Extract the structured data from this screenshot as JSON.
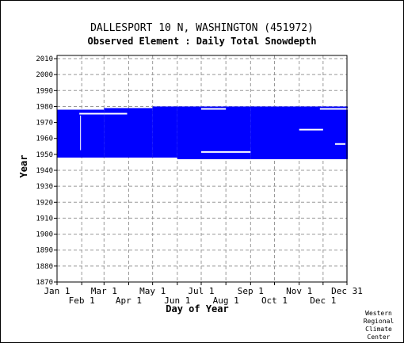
{
  "chart_data": {
    "type": "heatmap",
    "title": "DALLESPORT 10 N, WASHINGTON   (451972)",
    "subtitle": "Observed Element : Daily Total Snowdepth",
    "xlabel": "Day of Year",
    "ylabel": "Year",
    "ylim": [
      1870,
      2012
    ],
    "xlim": [
      1,
      365
    ],
    "grid": true,
    "y_ticks": [
      2010,
      2000,
      1990,
      1980,
      1970,
      1960,
      1950,
      1940,
      1930,
      1920,
      1910,
      1900,
      1890,
      1880,
      1870
    ],
    "x_ticks_top_row": [
      {
        "label": "Jan 1",
        "day": 1
      },
      {
        "label": "Mar 1",
        "day": 60
      },
      {
        "label": "May 1",
        "day": 121
      },
      {
        "label": "Jul 1",
        "day": 182
      },
      {
        "label": "Sep 1",
        "day": 244
      },
      {
        "label": "Nov 1",
        "day": 305
      },
      {
        "label": "Dec 31",
        "day": 365
      }
    ],
    "x_ticks_bottom_row": [
      {
        "label": "Feb 1",
        "day": 32
      },
      {
        "label": "Apr 1",
        "day": 91
      },
      {
        "label": "Jun 1",
        "day": 152
      },
      {
        "label": "Aug 1",
        "day": 213
      },
      {
        "label": "Oct 1",
        "day": 274
      },
      {
        "label": "Dec 1",
        "day": 335
      }
    ],
    "observed_color": "#0000ff",
    "observed_blocks": [
      {
        "day_start": 1,
        "day_end": 59,
        "year_start": 1948,
        "year_end": 1977
      },
      {
        "day_start": 60,
        "day_end": 120,
        "year_start": 1948,
        "year_end": 1978
      },
      {
        "day_start": 121,
        "day_end": 151,
        "year_start": 1948,
        "year_end": 1979
      },
      {
        "day_start": 152,
        "day_end": 243,
        "year_start": 1947,
        "year_end": 1979
      },
      {
        "day_start": 244,
        "day_end": 365,
        "year_start": 1947,
        "year_end": 1979
      }
    ],
    "gaps": [
      {
        "day_start": 29,
        "day_end": 59,
        "year": 1975
      },
      {
        "day_start": 60,
        "day_end": 88,
        "year": 1975
      },
      {
        "day_start": 182,
        "day_end": 212,
        "year": 1978
      },
      {
        "day_start": 182,
        "day_end": 243,
        "year": 1951
      },
      {
        "day_start": 305,
        "day_end": 334,
        "year": 1965
      },
      {
        "day_start": 331,
        "day_end": 365,
        "year": 1978
      },
      {
        "day_start": 350,
        "day_end": 362,
        "year": 1956
      },
      {
        "day_start": 30,
        "day_end": 30,
        "year_start": 1948,
        "year_end": 1978
      }
    ],
    "footer": [
      "Western",
      "Regional",
      "Climate",
      "Center"
    ]
  }
}
